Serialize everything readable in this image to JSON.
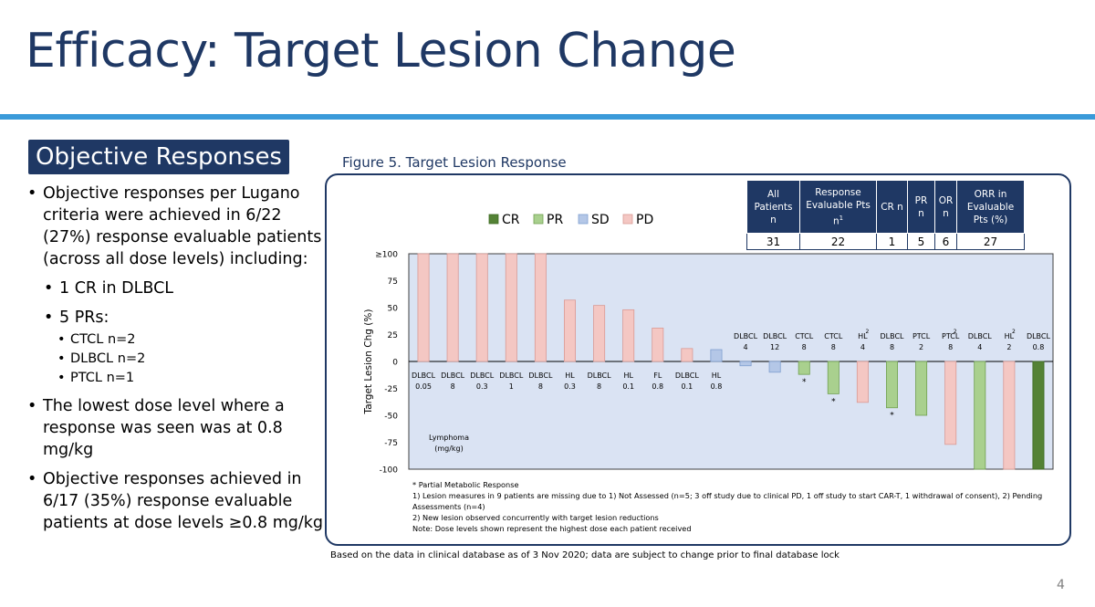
{
  "slide": {
    "title": "Efficacy: Target Lesion Change",
    "section": "Objective Responses",
    "page_number": "4",
    "colors": {
      "title": "#1f3864",
      "rule": "#3a9ad9",
      "badge": "#1f3864"
    }
  },
  "bullets": {
    "b1": "Objective responses per Lugano criteria were achieved in 6/22 (27%) response evaluable patients (across all dose levels) including:",
    "b1a": "1 CR in DLBCL",
    "b1b": "5 PRs:",
    "b1b1": "CTCL n=2",
    "b1b2": "DLBCL n=2",
    "b1b3": "PTCL n=1",
    "b2": "The lowest dose level where a response was seen was at 0.8 mg/kg",
    "b3": "Objective responses achieved in 6/17 (35%) response evaluable patients at dose levels ≥0.8 mg/kg"
  },
  "figure": {
    "caption": "Figure 5. Target Lesion Response",
    "db_note": "Based on the data in clinical database as of 3 Nov 2020; data are subject to change prior to final database lock",
    "notes": [
      "*  Partial Metabolic Response",
      "1) Lesion measures in 9 patients are missing due to 1) Not Assessed (n=5; 3 off study due to clinical PD, 1 off study to start CAR-T, 1 withdrawal of consent), 2) Pending Assessments (n=4)",
      "2) New lesion observed concurrently with target lesion reductions",
      "Note: Dose levels shown represent the highest dose each patient received"
    ],
    "table": {
      "headers": [
        "All Patients n",
        "Response Evaluable Pts n",
        "CR n",
        "PR n",
        "OR n",
        "ORR in Evaluable Pts (%)"
      ],
      "header2_sup": "1",
      "values": [
        "31",
        "22",
        "1",
        "5",
        "6",
        "27"
      ]
    }
  },
  "chart_data": {
    "type": "bar",
    "title": "",
    "ylabel": "Target Lesion Chg (%)",
    "xlabel": "",
    "ylim": [
      -100,
      100
    ],
    "yticks": [
      "-100",
      "-75",
      "-50",
      "-25",
      "0",
      "25",
      "50",
      "75",
      "≥100"
    ],
    "legend": [
      {
        "name": "CR",
        "color": "#548235"
      },
      {
        "name": "PR",
        "color": "#a9d08e"
      },
      {
        "name": "SD",
        "color": "#b4c7e7"
      },
      {
        "name": "PD",
        "color": "#f4c7c3"
      }
    ],
    "legend_position": "top",
    "annotation": "Lymphoma (mg/kg)",
    "bars": [
      {
        "histology": "DLBCL",
        "dose": "0.05",
        "value": 100,
        "response": "PD",
        "star": false,
        "sup": ""
      },
      {
        "histology": "DLBCL",
        "dose": "8",
        "value": 100,
        "response": "PD",
        "star": false,
        "sup": ""
      },
      {
        "histology": "DLBCL",
        "dose": "0.3",
        "value": 100,
        "response": "PD",
        "star": false,
        "sup": ""
      },
      {
        "histology": "DLBCL",
        "dose": "1",
        "value": 100,
        "response": "PD",
        "star": false,
        "sup": ""
      },
      {
        "histology": "DLBCL",
        "dose": "8",
        "value": 100,
        "response": "PD",
        "star": false,
        "sup": ""
      },
      {
        "histology": "HL",
        "dose": "0.3",
        "value": 57,
        "response": "PD",
        "star": false,
        "sup": ""
      },
      {
        "histology": "DLBCL",
        "dose": "8",
        "value": 52,
        "response": "PD",
        "star": false,
        "sup": ""
      },
      {
        "histology": "HL",
        "dose": "0.1",
        "value": 48,
        "response": "PD",
        "star": false,
        "sup": ""
      },
      {
        "histology": "FL",
        "dose": "0.8",
        "value": 31,
        "response": "PD",
        "star": false,
        "sup": ""
      },
      {
        "histology": "DLBCL",
        "dose": "0.1",
        "value": 12,
        "response": "PD",
        "star": false,
        "sup": ""
      },
      {
        "histology": "HL",
        "dose": "0.8",
        "value": 11,
        "response": "SD",
        "star": false,
        "sup": ""
      },
      {
        "histology": "DLBCL",
        "dose": "4",
        "value": -4,
        "response": "SD",
        "star": false,
        "sup": ""
      },
      {
        "histology": "DLBCL",
        "dose": "12",
        "value": -10,
        "response": "SD",
        "star": false,
        "sup": ""
      },
      {
        "histology": "CTCL",
        "dose": "8",
        "value": -12,
        "response": "PR",
        "star": true,
        "sup": ""
      },
      {
        "histology": "CTCL",
        "dose": "8",
        "value": -30,
        "response": "PR",
        "star": true,
        "sup": ""
      },
      {
        "histology": "HL",
        "dose": "4",
        "value": -38,
        "response": "PD",
        "star": false,
        "sup": "2"
      },
      {
        "histology": "DLBCL",
        "dose": "8",
        "value": -43,
        "response": "PR",
        "star": true,
        "sup": ""
      },
      {
        "histology": "PTCL",
        "dose": "2",
        "value": -50,
        "response": "PR",
        "star": false,
        "sup": ""
      },
      {
        "histology": "PTCL",
        "dose": "8",
        "value": -77,
        "response": "PD",
        "star": false,
        "sup": "2"
      },
      {
        "histology": "DLBCL",
        "dose": "4",
        "value": -100,
        "response": "PR",
        "star": false,
        "sup": ""
      },
      {
        "histology": "HL",
        "dose": "2",
        "value": -100,
        "response": "PD",
        "star": false,
        "sup": "2"
      },
      {
        "histology": "DLBCL",
        "dose": "0.8",
        "value": -100,
        "response": "CR",
        "star": false,
        "sup": ""
      }
    ]
  }
}
